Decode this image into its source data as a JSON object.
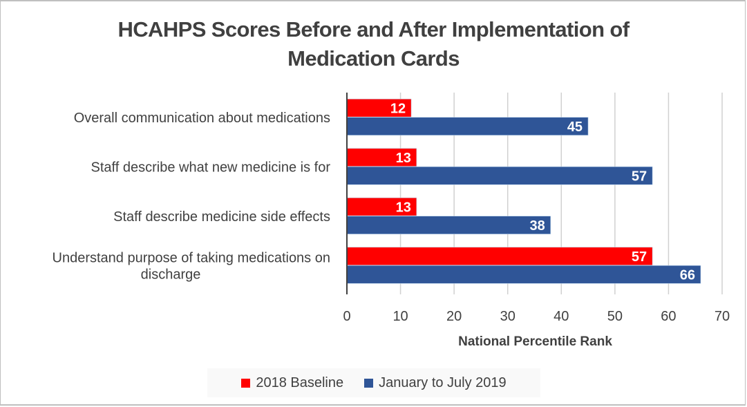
{
  "chart_data": {
    "type": "bar",
    "orientation": "horizontal",
    "title": "HCAHPS Scores Before and After Implementation of Medication Cards",
    "title_lines": [
      "HCAHPS Scores Before and After Implementation of",
      "Medication Cards"
    ],
    "xlabel": "National Percentile Rank",
    "ylabel": "",
    "xlim": [
      0,
      70
    ],
    "xticks": [
      0,
      10,
      20,
      30,
      40,
      50,
      60,
      70
    ],
    "grid": true,
    "legend_position": "bottom",
    "categories": [
      [
        "Overall communication about medications"
      ],
      [
        "Staff describe what new medicine is for"
      ],
      [
        "Staff describe medicine side effects"
      ],
      [
        "Understand purpose of taking medications on",
        "discharge"
      ]
    ],
    "series": [
      {
        "name": "2018 Baseline",
        "color": "#ff0000",
        "values": [
          12,
          13,
          13,
          57
        ]
      },
      {
        "name": "January to July 2019",
        "color": "#2f5597",
        "values": [
          45,
          57,
          38,
          66
        ]
      }
    ]
  }
}
